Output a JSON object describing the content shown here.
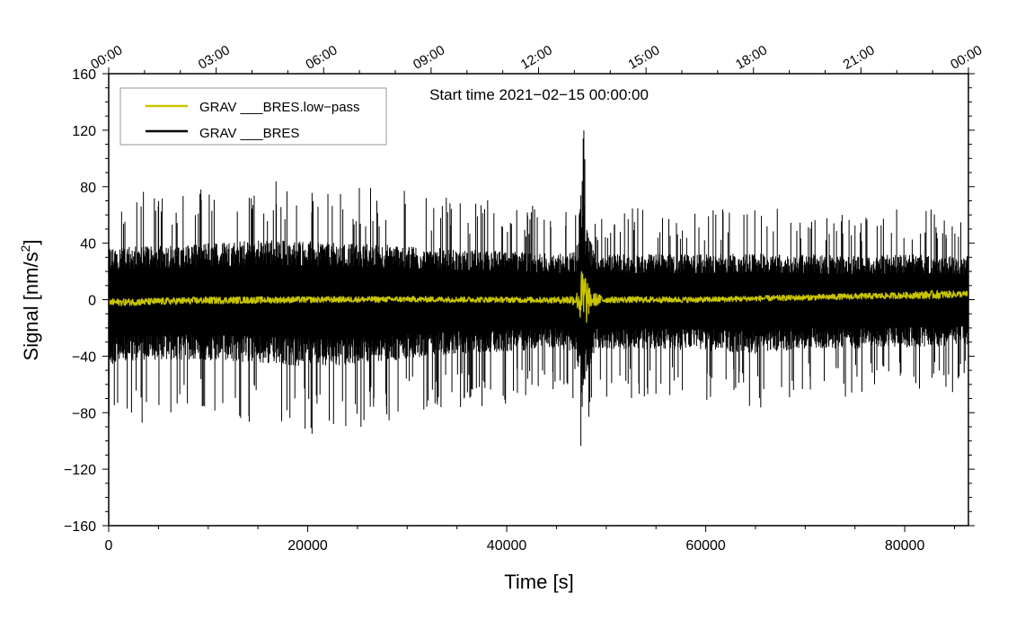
{
  "chart_data": {
    "type": "line",
    "title": "Start time 2021−02−15 00:00:00",
    "xlabel": "Time [s]",
    "ylabel_main": "Signal [nm/s",
    "ylabel_sup": "2",
    "ylabel_end": "]",
    "xlim": [
      0,
      86400
    ],
    "ylim": [
      -160,
      160
    ],
    "x_ticks": [
      {
        "value": 0,
        "label": "0"
      },
      {
        "value": 20000,
        "label": "20000"
      },
      {
        "value": 40000,
        "label": "40000"
      },
      {
        "value": 60000,
        "label": "60000"
      },
      {
        "value": 80000,
        "label": "80000"
      }
    ],
    "y_ticks": [
      {
        "value": 160,
        "label": "160"
      },
      {
        "value": 120,
        "label": "120"
      },
      {
        "value": 80,
        "label": "80"
      },
      {
        "value": 40,
        "label": "40"
      },
      {
        "value": 0,
        "label": "0"
      },
      {
        "value": -40,
        "label": "−40"
      },
      {
        "value": -80,
        "label": "−80"
      },
      {
        "value": -120,
        "label": "−120"
      },
      {
        "value": -160,
        "label": "−160"
      }
    ],
    "time_ticks": [
      {
        "value": 0,
        "label": "00:00"
      },
      {
        "value": 10800,
        "label": "03:00"
      },
      {
        "value": 21600,
        "label": "06:00"
      },
      {
        "value": 32400,
        "label": "09:00"
      },
      {
        "value": 43200,
        "label": "12:00"
      },
      {
        "value": 54000,
        "label": "15:00"
      },
      {
        "value": 64800,
        "label": "18:00"
      },
      {
        "value": 75600,
        "label": "21:00"
      },
      {
        "value": 86400,
        "label": "00:00"
      }
    ],
    "legend": {
      "position": "top-left",
      "entries": [
        {
          "label": "GRAV ___BRES.low−pass",
          "color": "#c8c400"
        },
        {
          "label": "GRAV ___BRES",
          "color": "#000000"
        }
      ]
    },
    "series": [
      {
        "name": "GRAV ___BRES",
        "color": "#000000",
        "envelope_x": [
          0,
          5000,
          10000,
          15000,
          20000,
          25000,
          30000,
          35000,
          40000,
          45000,
          47000,
          47600,
          47900,
          48200,
          49000,
          55000,
          60000,
          65000,
          70000,
          75000,
          80000,
          86400
        ],
        "envelope_upper": [
          48,
          50,
          52,
          55,
          54,
          52,
          50,
          47,
          45,
          42,
          44,
          118,
          70,
          60,
          42,
          42,
          42,
          43,
          42,
          40,
          42,
          40
        ],
        "envelope_lower": [
          -60,
          -55,
          -56,
          -58,
          -62,
          -60,
          -55,
          -50,
          -48,
          -45,
          -48,
          -108,
          -75,
          -65,
          -46,
          -46,
          -47,
          -50,
          -45,
          -45,
          -44,
          -42
        ],
        "baseline": 0
      },
      {
        "name": "GRAV ___BRES.low−pass",
        "color": "#c8c400",
        "x": [
          0,
          10000,
          20000,
          30000,
          40000,
          45000,
          47000,
          47600,
          47900,
          48400,
          50000,
          54000,
          60000,
          65000,
          70000,
          75000,
          80000,
          83000,
          86400
        ],
        "y": [
          -2,
          -0.5,
          0,
          0.3,
          0,
          -0.3,
          0,
          0,
          0,
          0,
          0,
          0,
          0,
          0.8,
          1.5,
          2.3,
          3,
          3.5,
          4
        ],
        "noise_amplitude": [
          2.5,
          2.5,
          2.2,
          2,
          2,
          2.2,
          4,
          24,
          22,
          6,
          2.2,
          2.2,
          2,
          2,
          2,
          2.2,
          2.2,
          3,
          2
        ]
      }
    ]
  }
}
